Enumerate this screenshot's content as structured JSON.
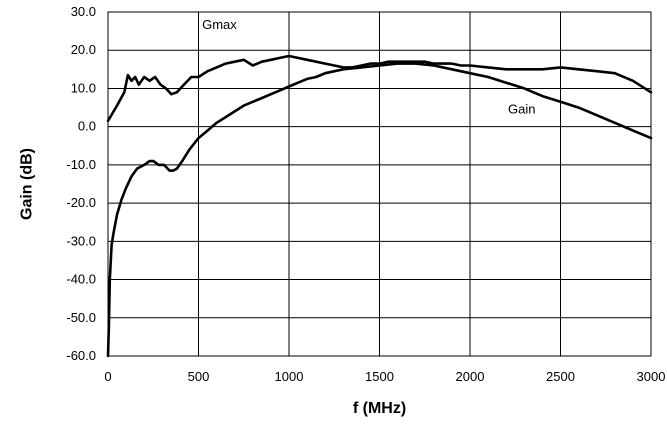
{
  "chart_data": {
    "type": "line",
    "xlabel": "f (MHz)",
    "ylabel": "Gain (dB)",
    "xlim": [
      0,
      3000
    ],
    "ylim": [
      -60,
      30
    ],
    "xticks": [
      0,
      500,
      1000,
      1500,
      2000,
      2500,
      3000
    ],
    "yticks": [
      30,
      20,
      10,
      0,
      -10,
      -20,
      -30,
      -40,
      -50,
      -60
    ],
    "ytick_labels": [
      "30.0",
      "20.0",
      "10.0",
      "0.0",
      "-10.0",
      "-20.0",
      "-30.0",
      "-40.0",
      "-50.0",
      "-60.0"
    ],
    "grid": true,
    "legend": "none",
    "series": [
      {
        "name": "Gmax",
        "x": [
          0,
          50,
          90,
          110,
          130,
          150,
          170,
          200,
          230,
          260,
          290,
          320,
          350,
          380,
          420,
          460,
          500,
          550,
          600,
          650,
          700,
          750,
          800,
          850,
          900,
          950,
          1000,
          1050,
          1100,
          1150,
          1200,
          1250,
          1300,
          1350,
          1400,
          1450,
          1500,
          1550,
          1600,
          1650,
          1700,
          1750,
          1800,
          1850,
          1900,
          1950,
          2000,
          2100,
          2200,
          2300,
          2400,
          2500,
          2600,
          2700,
          2800,
          2900,
          3000
        ],
        "values": [
          1.5,
          5.5,
          9,
          13.5,
          12,
          13,
          11,
          13,
          12,
          13,
          11,
          10,
          8.5,
          9,
          11,
          13,
          13,
          14.5,
          15.5,
          16.5,
          17,
          17.5,
          16,
          17,
          17.5,
          18,
          18.5,
          18,
          17.5,
          17,
          16.5,
          16,
          15.5,
          15.5,
          16,
          16.5,
          16.5,
          17,
          17,
          17,
          17,
          17,
          16.5,
          16.5,
          16.5,
          16,
          16,
          15.5,
          15,
          15,
          15,
          15.5,
          15,
          14.5,
          14,
          12,
          9
        ]
      },
      {
        "name": "Gain",
        "x": [
          0,
          5,
          10,
          20,
          30,
          50,
          75,
          100,
          130,
          160,
          200,
          230,
          250,
          280,
          310,
          340,
          360,
          380,
          410,
          450,
          500,
          550,
          600,
          650,
          700,
          750,
          800,
          850,
          900,
          950,
          1000,
          1050,
          1100,
          1150,
          1200,
          1300,
          1400,
          1500,
          1600,
          1700,
          1800,
          1900,
          2000,
          2100,
          2200,
          2300,
          2400,
          2500,
          2600,
          2700,
          2800,
          2900,
          3000
        ],
        "values": [
          -60,
          -52,
          -40,
          -31,
          -28,
          -23,
          -19,
          -16,
          -13,
          -11,
          -10,
          -9,
          -9,
          -10,
          -10,
          -11.5,
          -11.5,
          -11,
          -9,
          -6,
          -3,
          -1,
          1,
          2.5,
          4,
          5.5,
          6.5,
          7.5,
          8.5,
          9.5,
          10.5,
          11.5,
          12.5,
          13,
          14,
          15,
          15.5,
          16,
          16.5,
          16.5,
          16,
          15,
          14,
          13,
          11.5,
          10,
          8,
          6.5,
          5,
          3,
          1,
          -1,
          -3
        ]
      }
    ],
    "annotations": [
      {
        "text": "Gmax",
        "x": 520,
        "y": 25.5
      },
      {
        "text": "Gain",
        "x": 2210,
        "y": 3.5
      }
    ]
  }
}
